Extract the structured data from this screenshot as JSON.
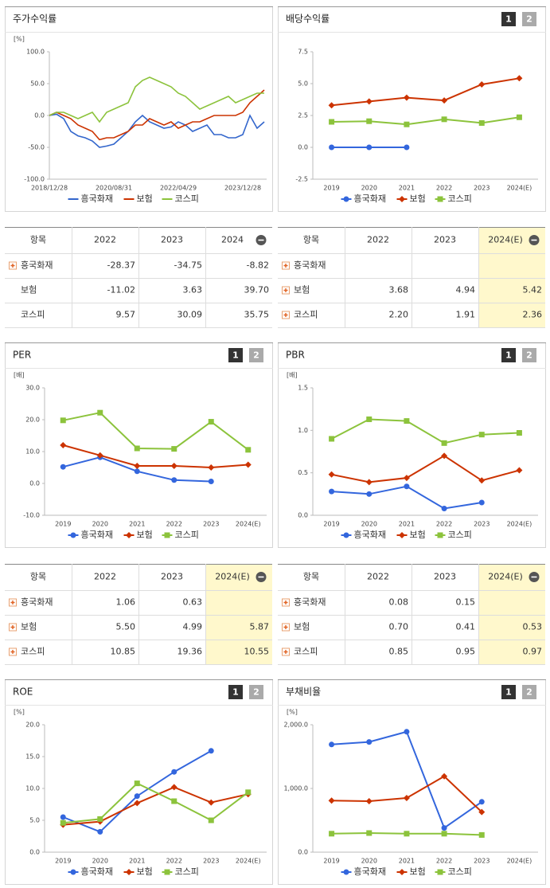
{
  "chart_data": [
    {
      "type": "line",
      "title": "주가수익률",
      "unit": "[%]",
      "categories": [
        "2018/12/28",
        null,
        null,
        null,
        null,
        null,
        null,
        null,
        null,
        "2020/08/31",
        null,
        null,
        null,
        null,
        null,
        null,
        null,
        null,
        "2022/04/29",
        null,
        null,
        null,
        null,
        null,
        null,
        null,
        null,
        "2023/12/28",
        null,
        null,
        null
      ],
      "series": [
        {
          "name": "흥국화재",
          "color": "#3366cc",
          "values": [
            0,
            2,
            -5,
            -25,
            -32,
            -35,
            -40,
            -50,
            -48,
            -45,
            -35,
            -25,
            -10,
            0,
            -10,
            -15,
            -20,
            -18,
            -10,
            -15,
            -25,
            -20,
            -15,
            -30,
            -30,
            -35,
            -35,
            -30,
            0,
            -20,
            -10
          ]
        },
        {
          "name": "보험",
          "color": "#cc3300",
          "values": [
            0,
            5,
            0,
            -5,
            -15,
            -20,
            -25,
            -38,
            -35,
            -35,
            -30,
            -25,
            -15,
            -15,
            -5,
            -10,
            -15,
            -10,
            -20,
            -15,
            -10,
            -10,
            -5,
            0,
            0,
            0,
            0,
            5,
            20,
            30,
            40
          ]
        },
        {
          "name": "코스피",
          "color": "#8cc33c",
          "values": [
            0,
            5,
            5,
            0,
            -5,
            0,
            5,
            -10,
            5,
            10,
            15,
            20,
            45,
            55,
            60,
            55,
            50,
            45,
            35,
            30,
            20,
            10,
            15,
            20,
            25,
            30,
            20,
            25,
            30,
            35,
            35
          ]
        }
      ],
      "ylim": [
        -100,
        100
      ],
      "yticks": [
        {
          "value": -100,
          "label": "-100.0"
        },
        {
          "value": -50,
          "label": "-50.0"
        },
        {
          "value": 0,
          "label": "0.0"
        },
        {
          "value": 50,
          "label": "50.0"
        },
        {
          "value": 100,
          "label": "100.0"
        }
      ]
    },
    {
      "type": "line",
      "title": "배당수익률",
      "pagination": [
        "1",
        "2"
      ],
      "categories": [
        "2019",
        "2020",
        "2021",
        "2022",
        "2023",
        "2024(E)"
      ],
      "series": [
        {
          "name": "흥국화재",
          "color": "#3366dd",
          "marker": "circle",
          "values": [
            0,
            0,
            0,
            null,
            null,
            null
          ]
        },
        {
          "name": "보험",
          "color": "#cc3300",
          "marker": "diamond",
          "values": [
            3.3,
            3.6,
            3.9,
            3.68,
            4.94,
            5.42
          ]
        },
        {
          "name": "코스피",
          "color": "#8cc33c",
          "marker": "square",
          "values": [
            2.0,
            2.05,
            1.8,
            2.2,
            1.91,
            2.36
          ]
        }
      ],
      "ylim": [
        -2.5,
        7.5
      ],
      "yticks": [
        {
          "value": -2.5,
          "label": "-2.5"
        },
        {
          "value": 0,
          "label": "0.0"
        },
        {
          "value": 2.5,
          "label": "2.5"
        },
        {
          "value": 5,
          "label": "5.0"
        },
        {
          "value": 7.5,
          "label": "7.5"
        }
      ]
    },
    {
      "type": "line",
      "title": "PER",
      "unit": "[배]",
      "pagination": [
        "1",
        "2"
      ],
      "categories": [
        "2019",
        "2020",
        "2021",
        "2022",
        "2023",
        "2024(E)"
      ],
      "series": [
        {
          "name": "흥국화재",
          "color": "#3366dd",
          "marker": "circle",
          "values": [
            5.2,
            8.2,
            3.8,
            1.06,
            0.63,
            null
          ]
        },
        {
          "name": "보험",
          "color": "#cc3300",
          "marker": "diamond",
          "values": [
            12.0,
            8.8,
            5.5,
            5.5,
            4.99,
            5.87
          ]
        },
        {
          "name": "코스피",
          "color": "#8cc33c",
          "marker": "square",
          "values": [
            19.8,
            22.2,
            11.0,
            10.85,
            19.36,
            10.55
          ]
        }
      ],
      "ylim": [
        -10,
        30
      ],
      "yticks": [
        {
          "value": -10,
          "label": "-10.0"
        },
        {
          "value": 0,
          "label": "0.0"
        },
        {
          "value": 10,
          "label": "10.0"
        },
        {
          "value": 20,
          "label": "20.0"
        },
        {
          "value": 30,
          "label": "30.0"
        }
      ]
    },
    {
      "type": "line",
      "title": "PBR",
      "unit": "[배]",
      "pagination": [
        "1",
        "2"
      ],
      "categories": [
        "2019",
        "2020",
        "2021",
        "2022",
        "2023",
        "2024(E)"
      ],
      "series": [
        {
          "name": "흥국화재",
          "color": "#3366dd",
          "marker": "circle",
          "values": [
            0.28,
            0.25,
            0.34,
            0.08,
            0.15,
            null
          ]
        },
        {
          "name": "보험",
          "color": "#cc3300",
          "marker": "diamond",
          "values": [
            0.48,
            0.39,
            0.44,
            0.7,
            0.41,
            0.53
          ]
        },
        {
          "name": "코스피",
          "color": "#8cc33c",
          "marker": "square",
          "values": [
            0.9,
            1.13,
            1.11,
            0.85,
            0.95,
            0.97
          ]
        }
      ],
      "ylim": [
        0,
        1.5
      ],
      "yticks": [
        {
          "value": 0,
          "label": "0.0"
        },
        {
          "value": 0.5,
          "label": "0.5"
        },
        {
          "value": 1,
          "label": "1.0"
        },
        {
          "value": 1.5,
          "label": "1.5"
        }
      ]
    },
    {
      "type": "line",
      "title": "ROE",
      "unit": "[%]",
      "pagination": [
        "1",
        "2"
      ],
      "categories": [
        "2019",
        "2020",
        "2021",
        "2022",
        "2023",
        "2024(E)"
      ],
      "series": [
        {
          "name": "흥국화재",
          "color": "#3366dd",
          "marker": "circle",
          "values": [
            5.5,
            3.2,
            8.8,
            12.6,
            15.9,
            null
          ]
        },
        {
          "name": "보험",
          "color": "#cc3300",
          "marker": "diamond",
          "values": [
            4.3,
            4.8,
            7.7,
            10.2,
            7.8,
            9.1
          ]
        },
        {
          "name": "코스피",
          "color": "#8cc33c",
          "marker": "square",
          "values": [
            4.6,
            5.2,
            10.8,
            8.0,
            5.0,
            9.4
          ]
        }
      ],
      "ylim": [
        0,
        20
      ],
      "yticks": [
        {
          "value": 0,
          "label": "0.0"
        },
        {
          "value": 5,
          "label": "5.0"
        },
        {
          "value": 10,
          "label": "10.0"
        },
        {
          "value": 15,
          "label": "15.0"
        },
        {
          "value": 20,
          "label": "20.0"
        }
      ]
    },
    {
      "type": "line",
      "title": "부채비율",
      "unit": "[%]",
      "pagination": [
        "1",
        "2"
      ],
      "categories": [
        "2019",
        "2020",
        "2021",
        "2022",
        "2023",
        "2024(E)"
      ],
      "series": [
        {
          "name": "흥국화재",
          "color": "#3366dd",
          "marker": "circle",
          "values": [
            1690,
            1730,
            1890,
            380,
            790,
            null
          ]
        },
        {
          "name": "보험",
          "color": "#cc3300",
          "marker": "diamond",
          "values": [
            810,
            800,
            850,
            1190,
            630,
            null
          ]
        },
        {
          "name": "코스피",
          "color": "#8cc33c",
          "marker": "square",
          "values": [
            290,
            300,
            290,
            290,
            270,
            null
          ]
        }
      ],
      "ylim": [
        0,
        2000
      ],
      "yticks": [
        {
          "value": 0,
          "label": "0.0"
        },
        {
          "value": 1000,
          "label": "1,000.0"
        },
        {
          "value": 2000,
          "label": "2,000.0"
        }
      ]
    }
  ],
  "tables": [
    {
      "header": [
        "항목",
        "2022",
        "2023",
        "2024"
      ],
      "expandable": [
        true,
        false,
        false
      ],
      "highlight_last": false,
      "rows": [
        [
          "흥국화재",
          "-28.37",
          "-34.75",
          "-8.82"
        ],
        [
          "보험",
          "-11.02",
          "3.63",
          "39.70"
        ],
        [
          "코스피",
          "9.57",
          "30.09",
          "35.75"
        ]
      ]
    },
    {
      "header": [
        "항목",
        "2022",
        "2023",
        "2024(E)"
      ],
      "expandable": [
        true,
        true,
        true
      ],
      "highlight_last": true,
      "rows": [
        [
          "흥국화재",
          null,
          null,
          null
        ],
        [
          "보험",
          "3.68",
          "4.94",
          "5.42"
        ],
        [
          "코스피",
          "2.20",
          "1.91",
          "2.36"
        ]
      ]
    },
    {
      "header": [
        "항목",
        "2022",
        "2023",
        "2024(E)"
      ],
      "expandable": [
        true,
        true,
        true
      ],
      "highlight_last": true,
      "rows": [
        [
          "흥국화재",
          "1.06",
          "0.63",
          null
        ],
        [
          "보험",
          "5.50",
          "4.99",
          "5.87"
        ],
        [
          "코스피",
          "10.85",
          "19.36",
          "10.55"
        ]
      ]
    },
    {
      "header": [
        "항목",
        "2022",
        "2023",
        "2024(E)"
      ],
      "expandable": [
        true,
        true,
        true
      ],
      "highlight_last": true,
      "rows": [
        [
          "흥국화재",
          "0.08",
          "0.15",
          null
        ],
        [
          "보험",
          "0.70",
          "0.41",
          "0.53"
        ],
        [
          "코스피",
          "0.85",
          "0.95",
          "0.97"
        ]
      ]
    }
  ]
}
